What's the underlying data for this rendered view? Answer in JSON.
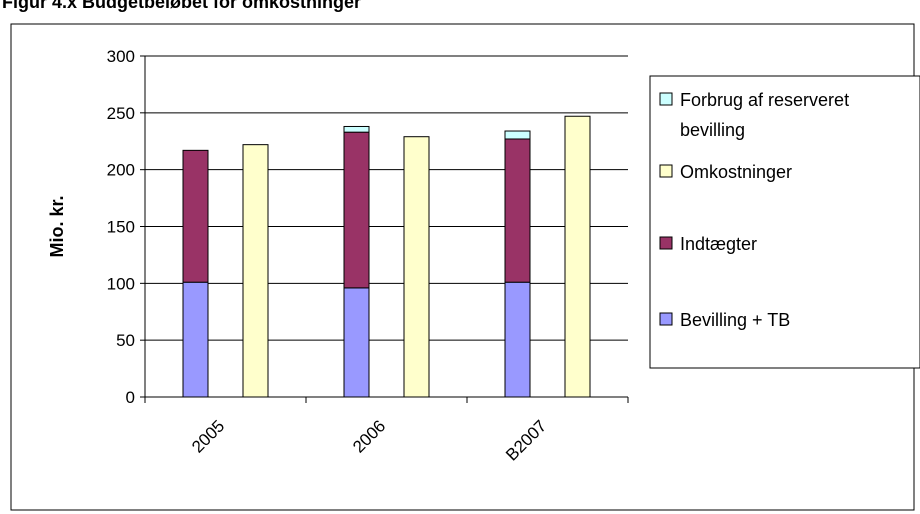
{
  "header": {
    "cut_title": "Figur 4.x Budgetbeløbet for omkostninger"
  },
  "chart_data": {
    "type": "bar",
    "title": "",
    "xlabel": "",
    "ylabel": "Mio. kr.",
    "ylim": [
      0,
      300
    ],
    "yticks": [
      0,
      50,
      100,
      150,
      200,
      250,
      300
    ],
    "grid": true,
    "legend_position": "right",
    "categories": [
      "2005",
      "2006",
      "B2007"
    ],
    "stacks": [
      {
        "name": "stack-funding",
        "series": [
          {
            "name": "Bevilling + TB",
            "color": "#9999ff",
            "values": [
              101,
              96,
              101
            ]
          },
          {
            "name": "Indtægter",
            "color": "#993366",
            "values": [
              116,
              137,
              126
            ]
          },
          {
            "name": "Forbrug af reserveret bevilling",
            "color": "#ccffff",
            "values": [
              0,
              5,
              7
            ]
          }
        ]
      },
      {
        "name": "stack-costs",
        "series": [
          {
            "name": "Omkostninger",
            "color": "#ffffcc",
            "values": [
              222,
              229,
              247
            ]
          }
        ]
      }
    ],
    "legend": [
      {
        "label_lines": [
          "Forbrug af reserveret",
          "bevilling"
        ],
        "color": "#ccffff"
      },
      {
        "label_lines": [
          "Omkostninger"
        ],
        "color": "#ffffcc"
      },
      {
        "label_lines": [
          "Indtægter"
        ],
        "color": "#993366"
      },
      {
        "label_lines": [
          "Bevilling + TB"
        ],
        "color": "#9999ff"
      }
    ]
  }
}
